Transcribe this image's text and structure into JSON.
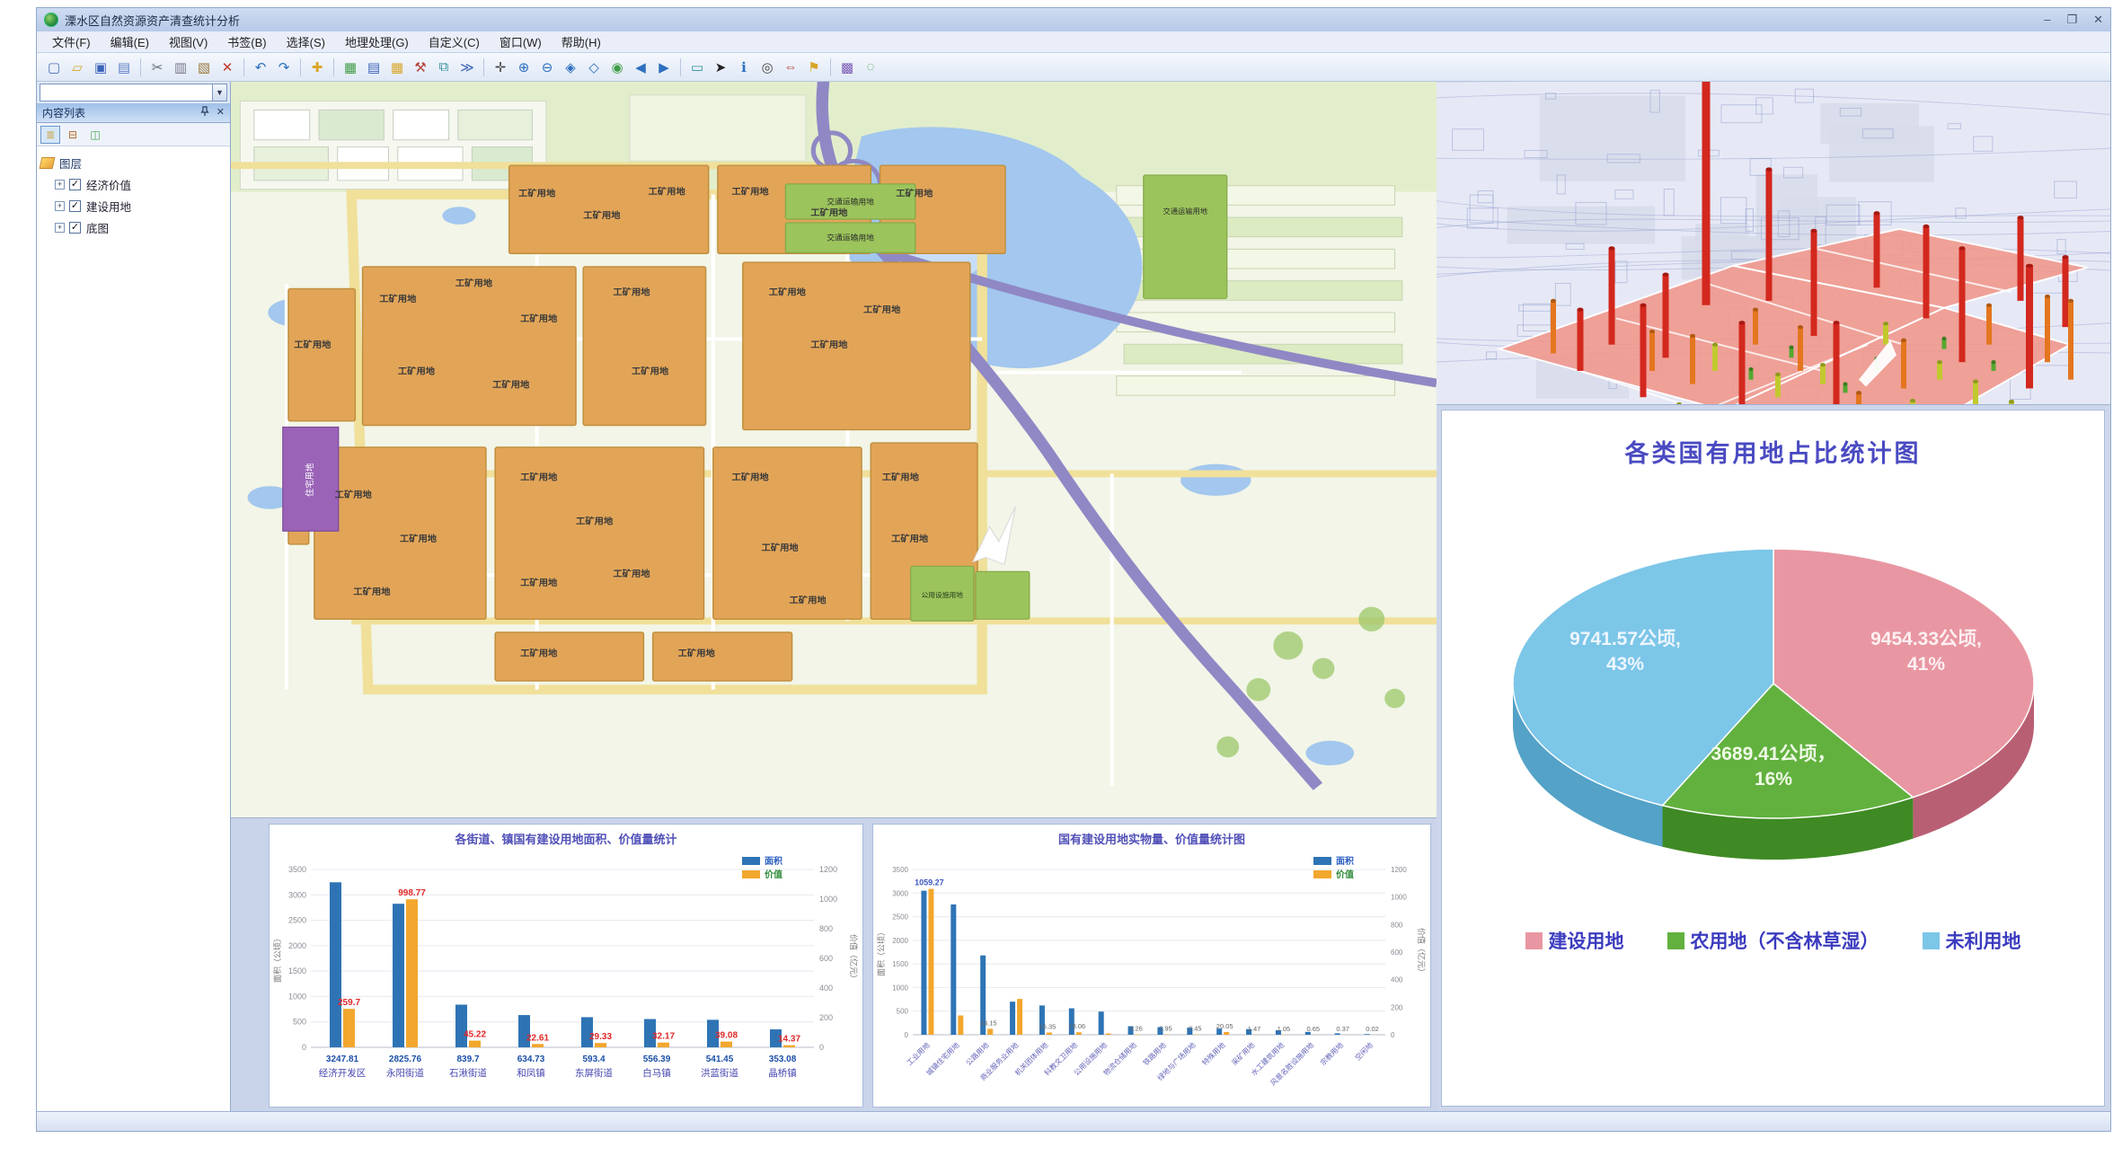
{
  "window": {
    "title": "溧水区自然资源资产清查统计分析"
  },
  "window_controls": {
    "minimize": "–",
    "restore": "❐",
    "close": "✕"
  },
  "menu": {
    "items": [
      "文件(F)",
      "编辑(E)",
      "视图(V)",
      "书签(B)",
      "选择(S)",
      "地理处理(G)",
      "自定义(C)",
      "窗口(W)",
      "帮助(H)"
    ]
  },
  "toolbar": {
    "combobox_value": "",
    "icons": [
      {
        "name": "new-document",
        "glyph": "▢",
        "color": "#4a6db8"
      },
      {
        "name": "open-folder",
        "glyph": "▱",
        "color": "#d9a62a"
      },
      {
        "name": "save",
        "glyph": "▣",
        "color": "#3a62b8"
      },
      {
        "name": "print",
        "glyph": "▤",
        "color": "#5b7fc4"
      },
      {
        "sep": true
      },
      {
        "name": "cut",
        "glyph": "✂",
        "color": "#667"
      },
      {
        "name": "copy",
        "glyph": "▥",
        "color": "#778"
      },
      {
        "name": "paste",
        "glyph": "▧",
        "color": "#997a3a"
      },
      {
        "name": "delete",
        "glyph": "✕",
        "color": "#c0392b"
      },
      {
        "sep": true
      },
      {
        "name": "undo",
        "glyph": "↶",
        "color": "#2e6fbf"
      },
      {
        "name": "redo",
        "glyph": "↷",
        "color": "#2e6fbf"
      },
      {
        "sep": true
      },
      {
        "name": "add-data",
        "glyph": "✚",
        "color": "#d9a62a"
      },
      {
        "sep": true
      },
      {
        "name": "map-document",
        "glyph": "▦",
        "color": "#3f9c46"
      },
      {
        "name": "table-of-contents",
        "glyph": "▤",
        "color": "#3a62b8"
      },
      {
        "name": "catalog",
        "glyph": "▦",
        "color": "#d9a62a"
      },
      {
        "name": "toolbox",
        "glyph": "⚒",
        "color": "#b5453a"
      },
      {
        "name": "model-builder",
        "glyph": "⧉",
        "color": "#2e8f9c"
      },
      {
        "name": "python",
        "glyph": "≫",
        "color": "#3a62b8"
      },
      {
        "sep": true
      },
      {
        "name": "pan",
        "glyph": "✛",
        "color": "#444"
      },
      {
        "name": "zoom-in",
        "glyph": "⊕",
        "color": "#2e6fbf"
      },
      {
        "name": "zoom-out",
        "glyph": "⊖",
        "color": "#2e6fbf"
      },
      {
        "name": "fixed-zoom-in",
        "glyph": "◈",
        "color": "#2e6fbf"
      },
      {
        "name": "fixed-zoom-out",
        "glyph": "◇",
        "color": "#2e6fbf"
      },
      {
        "name": "full-extent",
        "glyph": "◉",
        "color": "#3f9c46"
      },
      {
        "name": "previous-extent",
        "glyph": "◀",
        "color": "#2e6fbf"
      },
      {
        "name": "next-extent",
        "glyph": "▶",
        "color": "#2e6fbf"
      },
      {
        "sep": true
      },
      {
        "name": "select-features",
        "glyph": "▭",
        "color": "#2e8f9c"
      },
      {
        "name": "select-cursor",
        "glyph": "➤",
        "color": "#222"
      },
      {
        "name": "identify",
        "glyph": "ℹ",
        "color": "#2e6fbf"
      },
      {
        "name": "find",
        "glyph": "◎",
        "color": "#444"
      },
      {
        "name": "measure",
        "glyph": "⇔",
        "color": "#b5453a"
      },
      {
        "name": "bookmarks",
        "glyph": "⚑",
        "color": "#d9a62a"
      },
      {
        "sep": true
      },
      {
        "name": "overlay-windows",
        "glyph": "▩",
        "color": "#7a5bb5"
      },
      {
        "name": "html-popup",
        "glyph": "◌",
        "color": "#3f9c46"
      }
    ]
  },
  "sidebar": {
    "title": "内容列表",
    "tree_root": "图层",
    "layers": [
      {
        "label": "经济价值",
        "checked": true
      },
      {
        "label": "建设用地",
        "checked": true
      },
      {
        "label": "底图",
        "checked": true
      }
    ]
  },
  "map": {
    "labels": {
      "industrial": "工矿用地",
      "transport": "交通运输用地",
      "residential": "住宅用地",
      "utility": "公用设施用地"
    }
  },
  "chart_data": {
    "street_bar": {
      "type": "bar",
      "title": "各街道、镇国有建设用地面积、价值量统计",
      "categories": [
        "经济开发区",
        "永阳街道",
        "石湫街道",
        "和凤镇",
        "东屏街道",
        "白马镇",
        "洪蓝街道",
        "晶桥镇"
      ],
      "series": [
        {
          "name": "面积",
          "axis": "left",
          "values": [
            3247.81,
            2825.76,
            839.7,
            634.73,
            593.4,
            556.39,
            541.45,
            353.08
          ]
        },
        {
          "name": "价值",
          "axis": "right",
          "values": [
            259.7,
            998.77,
            45.22,
            22.61,
            29.33,
            32.17,
            39.08,
            14.37
          ]
        }
      ],
      "y_left": {
        "label": "面积（公顷）",
        "min": 0,
        "max": 3500,
        "step": 500
      },
      "y_right": {
        "label": "价值（亿元）",
        "min": 0,
        "max": 1200,
        "step": 200
      },
      "legend_position": "top-right",
      "grid": true
    },
    "landuse_bar": {
      "type": "bar",
      "title": "国有建设用地实物量、价值量统计图",
      "categories": [
        "工业用地",
        "城镇住宅用地",
        "公路用地",
        "商业服务业用地",
        "机关团体用地",
        "科教文卫用地",
        "公用设施用地",
        "物流仓储用地",
        "铁路用地",
        "绿地与广场用地",
        "特殊用地",
        "采矿用地",
        "水工建筑用地",
        "风景名胜设施用地",
        "宗教用地",
        "空闲地"
      ],
      "series": [
        {
          "name": "面积",
          "axis": "left",
          "values": [
            3050,
            2760,
            1680,
            700,
            620,
            560,
            490,
            180,
            160,
            150,
            130,
            120,
            95,
            60,
            30,
            15
          ]
        },
        {
          "name": "价值",
          "axis": "right",
          "values": [
            1059.27,
            140,
            43.15,
            260,
            16.35,
            18.06,
            9.11,
            3.26,
            2.95,
            2.45,
            20.05,
            1.47,
            1.05,
            0.65,
            0.37,
            0.02
          ]
        }
      ],
      "value_labels": [
        "1059.27",
        "",
        "43.15",
        "",
        "16.35",
        "18.06",
        "",
        "3.26",
        "2.95",
        "2.45",
        "20.05",
        "1.47",
        "1.05",
        "0.65",
        "0.37",
        "0.02"
      ],
      "y_left": {
        "label": "面积（公顷）",
        "min": 0,
        "max": 3500,
        "step": 500
      },
      "y_right": {
        "label": "价值（亿元）",
        "min": 0,
        "max": 1200,
        "step": 200
      },
      "legend_position": "top-right",
      "grid": true
    },
    "pie": {
      "type": "pie",
      "title": "各类国有用地占比统计图",
      "slices": [
        {
          "label": "建设用地",
          "value_ha": 9454.33,
          "pct": 41,
          "text_line1": "9454.33公顷,",
          "text_line2": "41%",
          "color": "#e897a2",
          "dark": "#b95f74"
        },
        {
          "label": "农用地（不含林草湿）",
          "value_ha": 3689.41,
          "pct": 16,
          "text_line1": "3689.41公顷，",
          "text_line2": "16%",
          "color": "#62b13e",
          "dark": "#3f8a24"
        },
        {
          "label": "未利用地",
          "value_ha": 9741.57,
          "pct": 43,
          "text_line1": "9741.57公顷,",
          "text_line2": "43%",
          "color": "#7cc6e8",
          "dark": "#54a2c8"
        }
      ],
      "legend": [
        "建设用地",
        "农用地（不含林草湿）",
        "未利用地"
      ]
    }
  },
  "colors": {
    "area_bar": "#2e74b5",
    "value_bar": "#f2a72e",
    "red_label": "#e02828"
  }
}
